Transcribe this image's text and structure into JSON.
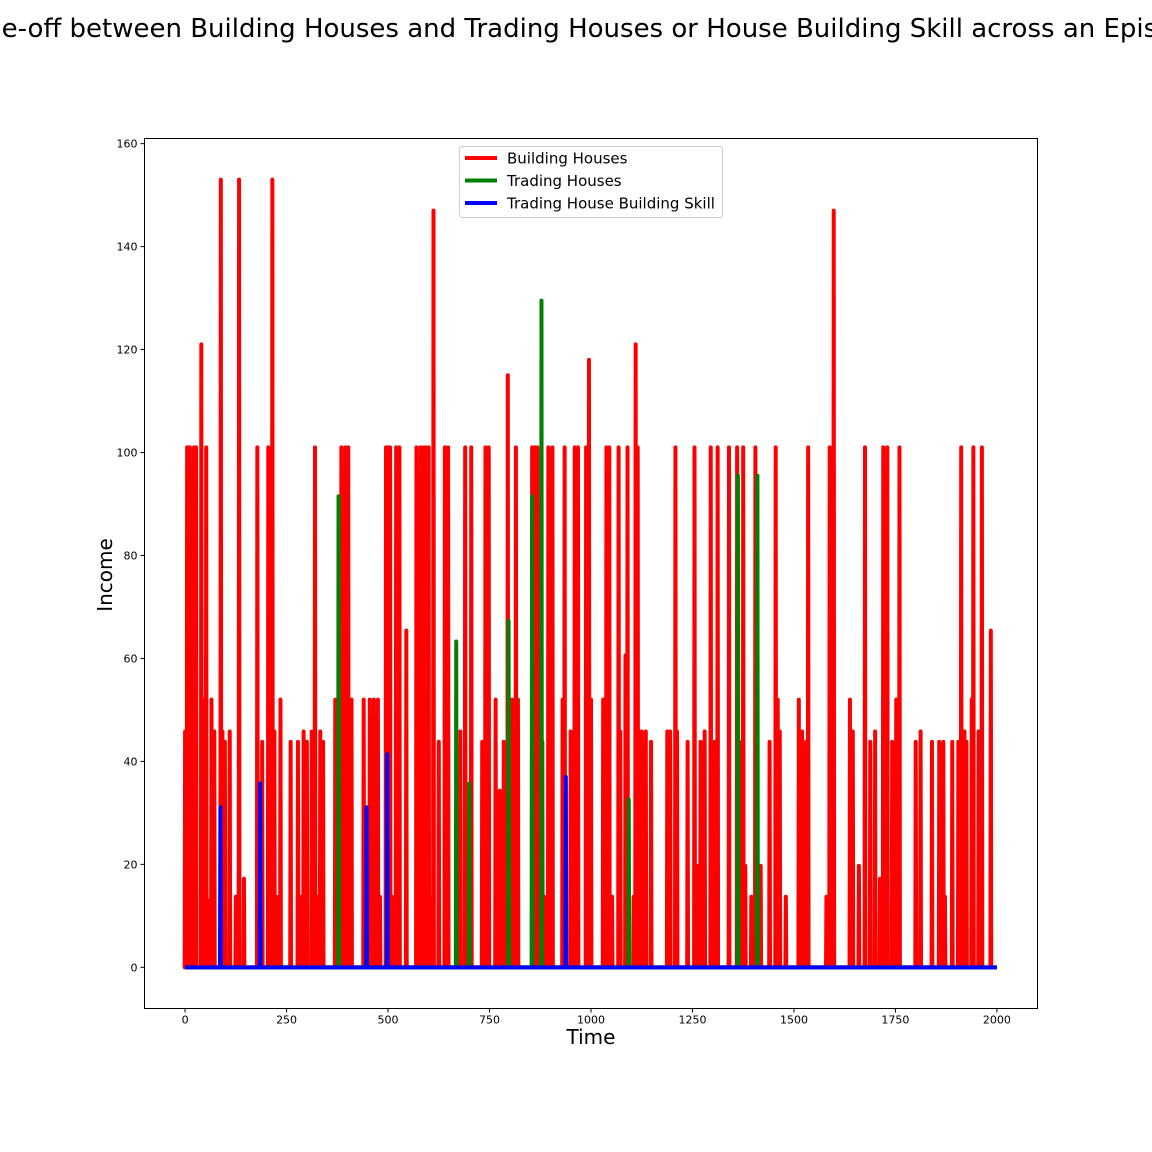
{
  "chart_data": {
    "type": "line",
    "title": "Trade-off between Building Houses and Trading Houses or House Building Skill across an Episode",
    "xlabel": "Time",
    "ylabel": "Income",
    "xlim": [
      -100,
      2100
    ],
    "ylim": [
      -8,
      161
    ],
    "xticks": [
      0,
      250,
      500,
      750,
      1000,
      1250,
      1500,
      1750,
      2000
    ],
    "yticks": [
      0,
      20,
      40,
      60,
      80,
      100,
      120,
      140,
      160
    ],
    "grid": false,
    "legend_position": "top-center",
    "series": [
      {
        "name": "Building Houses",
        "color": "#ff0000",
        "spikes": [
          [
            0,
            45.8
          ],
          [
            5,
            101
          ],
          [
            8,
            101
          ],
          [
            12,
            101
          ],
          [
            18,
            45.8
          ],
          [
            22,
            101
          ],
          [
            27,
            101
          ],
          [
            40,
            121
          ],
          [
            46,
            52
          ],
          [
            52,
            101
          ],
          [
            57,
            13
          ],
          [
            65,
            52
          ],
          [
            72,
            45.8
          ],
          [
            88,
            153
          ],
          [
            92,
            45.8
          ],
          [
            98,
            43.8
          ],
          [
            110,
            45.8
          ],
          [
            125,
            13.7
          ],
          [
            133,
            153
          ],
          [
            145,
            17.2
          ],
          [
            178,
            101
          ],
          [
            190,
            43.8
          ],
          [
            205,
            101
          ],
          [
            215,
            153
          ],
          [
            220,
            45.8
          ],
          [
            225,
            13.7
          ],
          [
            235,
            52
          ],
          [
            260,
            43.8
          ],
          [
            278,
            43.8
          ],
          [
            285,
            13.7
          ],
          [
            292,
            45.8
          ],
          [
            300,
            43.8
          ],
          [
            312,
            45.8
          ],
          [
            320,
            101
          ],
          [
            325,
            13.7
          ],
          [
            333,
            45.8
          ],
          [
            340,
            43.8
          ],
          [
            370,
            52
          ],
          [
            385,
            101
          ],
          [
            395,
            101
          ],
          [
            402,
            101
          ],
          [
            410,
            52
          ],
          [
            440,
            52
          ],
          [
            455,
            52
          ],
          [
            465,
            52
          ],
          [
            475,
            52
          ],
          [
            480,
            13.7
          ],
          [
            495,
            101
          ],
          [
            500,
            101
          ],
          [
            505,
            101
          ],
          [
            510,
            13.7
          ],
          [
            520,
            101
          ],
          [
            528,
            101
          ],
          [
            545,
            65.4
          ],
          [
            570,
            101
          ],
          [
            580,
            101
          ],
          [
            588,
            101
          ],
          [
            592,
            101
          ],
          [
            600,
            101
          ],
          [
            605,
            13.7
          ],
          [
            612,
            147
          ],
          [
            625,
            43.8
          ],
          [
            640,
            101
          ],
          [
            648,
            101
          ],
          [
            670,
            19.7
          ],
          [
            678,
            45.8
          ],
          [
            690,
            101
          ],
          [
            705,
            101
          ],
          [
            732,
            43.8
          ],
          [
            740,
            101
          ],
          [
            748,
            101
          ],
          [
            765,
            52
          ],
          [
            775,
            34.3
          ],
          [
            785,
            43.8
          ],
          [
            795,
            115
          ],
          [
            805,
            52
          ],
          [
            815,
            101
          ],
          [
            820,
            52
          ],
          [
            855,
            101
          ],
          [
            862,
            101
          ],
          [
            868,
            101
          ],
          [
            880,
            43.8
          ],
          [
            885,
            13.7
          ],
          [
            895,
            101
          ],
          [
            905,
            101
          ],
          [
            930,
            52
          ],
          [
            935,
            101
          ],
          [
            950,
            45.8
          ],
          [
            960,
            101
          ],
          [
            968,
            101
          ],
          [
            988,
            101
          ],
          [
            995,
            118
          ],
          [
            1000,
            52
          ],
          [
            1030,
            52
          ],
          [
            1038,
            101
          ],
          [
            1045,
            101
          ],
          [
            1052,
            13.7
          ],
          [
            1068,
            101
          ],
          [
            1072,
            45.8
          ],
          [
            1085,
            60.6
          ],
          [
            1090,
            101
          ],
          [
            1105,
            13.7
          ],
          [
            1110,
            121
          ],
          [
            1115,
            101
          ],
          [
            1125,
            45.8
          ],
          [
            1135,
            45.8
          ],
          [
            1148,
            43.8
          ],
          [
            1188,
            45.8
          ],
          [
            1195,
            45.8
          ],
          [
            1208,
            101
          ],
          [
            1212,
            45.8
          ],
          [
            1238,
            43.8
          ],
          [
            1255,
            101
          ],
          [
            1262,
            19.7
          ],
          [
            1270,
            43.8
          ],
          [
            1280,
            45.8
          ],
          [
            1295,
            101
          ],
          [
            1305,
            43.8
          ],
          [
            1312,
            101
          ],
          [
            1340,
            101
          ],
          [
            1360,
            101
          ],
          [
            1365,
            43.8
          ],
          [
            1375,
            101
          ],
          [
            1380,
            19.7
          ],
          [
            1395,
            13.7
          ],
          [
            1405,
            101
          ],
          [
            1418,
            19.7
          ],
          [
            1440,
            43.8
          ],
          [
            1455,
            101
          ],
          [
            1460,
            52
          ],
          [
            1465,
            45.8
          ],
          [
            1480,
            13.7
          ],
          [
            1512,
            52
          ],
          [
            1520,
            45.8
          ],
          [
            1530,
            43.8
          ],
          [
            1535,
            101
          ],
          [
            1580,
            13.7
          ],
          [
            1588,
            101
          ],
          [
            1598,
            147
          ],
          [
            1638,
            52
          ],
          [
            1645,
            45.8
          ],
          [
            1660,
            19.7
          ],
          [
            1675,
            101
          ],
          [
            1688,
            43.8
          ],
          [
            1700,
            45.8
          ],
          [
            1712,
            17.2
          ],
          [
            1720,
            101
          ],
          [
            1730,
            101
          ],
          [
            1742,
            43.8
          ],
          [
            1752,
            52
          ],
          [
            1760,
            101
          ],
          [
            1800,
            43.8
          ],
          [
            1812,
            45.8
          ],
          [
            1840,
            43.8
          ],
          [
            1858,
            43.8
          ],
          [
            1868,
            43.8
          ],
          [
            1872,
            13.7
          ],
          [
            1890,
            43.8
          ],
          [
            1905,
            43.8
          ],
          [
            1912,
            101
          ],
          [
            1920,
            45.8
          ],
          [
            1925,
            43.8
          ],
          [
            1938,
            52
          ],
          [
            1942,
            101
          ],
          [
            1955,
            45.8
          ],
          [
            1963,
            101
          ],
          [
            1985,
            65.4
          ]
        ]
      },
      {
        "name": "Trading Houses",
        "color": "#008000",
        "spikes": [
          [
            378,
            91.5
          ],
          [
            668,
            63.3
          ],
          [
            700,
            35.7
          ],
          [
            797,
            67.3
          ],
          [
            855,
            91.5
          ],
          [
            878,
            129.5
          ],
          [
            1093,
            32.6
          ],
          [
            1362,
            95.5
          ],
          [
            1410,
            95.5
          ]
        ]
      },
      {
        "name": "Trading House Building Skill",
        "color": "#0000ff",
        "spikes": [
          [
            87,
            31.1
          ],
          [
            185,
            35.7
          ],
          [
            447,
            31.1
          ],
          [
            498,
            41.4
          ],
          [
            938,
            37
          ]
        ]
      }
    ]
  }
}
